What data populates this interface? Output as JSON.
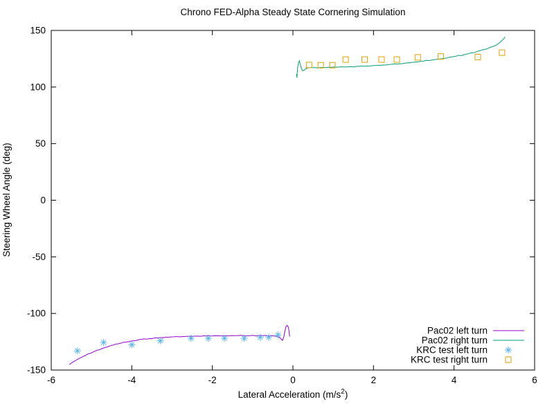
{
  "window": {
    "background": "#ffffff"
  },
  "chart_data": {
    "type": "line",
    "title": "Chrono FED-Alpha Steady State Cornering Simulation",
    "xlabel_main": "Lateral Acceleration (m/s",
    "xlabel_sup": "2",
    "xlabel_close": ")",
    "ylabel": "Steering Wheel Angle (deg)",
    "xlim": [
      -6,
      6
    ],
    "ylim": [
      -150,
      150
    ],
    "xticks": [
      "-6",
      "-4",
      "-2",
      "0",
      "2",
      "4",
      "6"
    ],
    "xtick_values": [
      -6,
      -4,
      -2,
      0,
      2,
      4,
      6
    ],
    "yticks": [
      "-150",
      "-100",
      "-50",
      "0",
      "50",
      "100",
      "150"
    ],
    "ytick_values": [
      -150,
      -100,
      -50,
      0,
      50,
      100,
      150
    ],
    "grid": false,
    "legend_position": "inside-bottom-right",
    "axis_color": "#000000",
    "series": [
      {
        "name": "Pac02 left turn",
        "type": "line",
        "color": "#9400d3",
        "points": [
          [
            -5.55,
            -145.2
          ],
          [
            -5.45,
            -142.7
          ],
          [
            -5.35,
            -140.5
          ],
          [
            -5.25,
            -138.8
          ],
          [
            -5.15,
            -137.1
          ],
          [
            -5.05,
            -135.4
          ],
          [
            -4.95,
            -133.9
          ],
          [
            -4.85,
            -132.4
          ],
          [
            -4.75,
            -131.1
          ],
          [
            -4.65,
            -129.9
          ],
          [
            -4.55,
            -128.8
          ],
          [
            -4.45,
            -127.8
          ],
          [
            -4.35,
            -126.9
          ],
          [
            -4.25,
            -126.1
          ],
          [
            -4.15,
            -125.4
          ],
          [
            -4.05,
            -124.7
          ],
          [
            -3.95,
            -124.1
          ],
          [
            -3.85,
            -123.5
          ],
          [
            -3.75,
            -123.0
          ],
          [
            -3.65,
            -122.6
          ],
          [
            -3.55,
            -122.2
          ],
          [
            -3.45,
            -121.8
          ],
          [
            -3.35,
            -121.5
          ],
          [
            -3.25,
            -121.3
          ],
          [
            -3.15,
            -121.0
          ],
          [
            -3.05,
            -120.8
          ],
          [
            -2.95,
            -120.6
          ],
          [
            -2.85,
            -120.5
          ],
          [
            -2.75,
            -120.3
          ],
          [
            -2.65,
            -120.2
          ],
          [
            -2.55,
            -120.1
          ],
          [
            -2.45,
            -120.0
          ],
          [
            -2.35,
            -120.0
          ],
          [
            -2.25,
            -119.9
          ],
          [
            -2.15,
            -119.8
          ],
          [
            -2.05,
            -119.8
          ],
          [
            -1.95,
            -119.7
          ],
          [
            -1.85,
            -119.7
          ],
          [
            -1.75,
            -119.7
          ],
          [
            -1.65,
            -119.6
          ],
          [
            -1.55,
            -119.6
          ],
          [
            -1.45,
            -119.6
          ],
          [
            -1.35,
            -119.6
          ],
          [
            -1.25,
            -119.6
          ],
          [
            -1.15,
            -119.6
          ],
          [
            -1.05,
            -119.6
          ],
          [
            -0.95,
            -119.6
          ],
          [
            -0.85,
            -119.6
          ],
          [
            -0.75,
            -119.7
          ],
          [
            -0.65,
            -119.7
          ],
          [
            -0.55,
            -119.8
          ],
          [
            -0.47,
            -119.9
          ],
          [
            -0.41,
            -120.2
          ],
          [
            -0.35,
            -120.9
          ],
          [
            -0.3,
            -122.4
          ],
          [
            -0.26,
            -123.8
          ],
          [
            -0.23,
            -121.2
          ],
          [
            -0.2,
            -115.8
          ],
          [
            -0.17,
            -111.4
          ],
          [
            -0.14,
            -110.6
          ],
          [
            -0.12,
            -111.6
          ],
          [
            -0.1,
            -114.6
          ],
          [
            -0.09,
            -118.2
          ],
          [
            -0.08,
            -120.4
          ]
        ]
      },
      {
        "name": "Pac02 right turn",
        "type": "line",
        "color": "#009e73",
        "points": [
          [
            0.09,
            111.5
          ],
          [
            0.1,
            108.2
          ],
          [
            0.11,
            113.5
          ],
          [
            0.12,
            118.2
          ],
          [
            0.14,
            121.6
          ],
          [
            0.16,
            123.2
          ],
          [
            0.18,
            120.2
          ],
          [
            0.21,
            116.6
          ],
          [
            0.24,
            114.3
          ],
          [
            0.28,
            114.9
          ],
          [
            0.33,
            116.4
          ],
          [
            0.39,
            117.0
          ],
          [
            0.46,
            117.2
          ],
          [
            0.55,
            117.1
          ],
          [
            0.65,
            117.2
          ],
          [
            0.75,
            117.3
          ],
          [
            0.85,
            117.3
          ],
          [
            0.95,
            117.4
          ],
          [
            1.05,
            117.5
          ],
          [
            1.15,
            117.6
          ],
          [
            1.25,
            117.7
          ],
          [
            1.35,
            117.8
          ],
          [
            1.45,
            117.9
          ],
          [
            1.55,
            118.0
          ],
          [
            1.65,
            118.2
          ],
          [
            1.75,
            118.4
          ],
          [
            1.85,
            118.6
          ],
          [
            1.95,
            118.8
          ],
          [
            2.05,
            119.0
          ],
          [
            2.15,
            119.3
          ],
          [
            2.25,
            119.5
          ],
          [
            2.35,
            119.8
          ],
          [
            2.45,
            120.1
          ],
          [
            2.55,
            120.4
          ],
          [
            2.65,
            120.7
          ],
          [
            2.75,
            121.0
          ],
          [
            2.85,
            121.4
          ],
          [
            2.95,
            121.8
          ],
          [
            3.05,
            122.2
          ],
          [
            3.15,
            122.6
          ],
          [
            3.25,
            123.0
          ],
          [
            3.35,
            123.4
          ],
          [
            3.45,
            123.9
          ],
          [
            3.55,
            124.4
          ],
          [
            3.65,
            124.9
          ],
          [
            3.75,
            125.4
          ],
          [
            3.85,
            126.0
          ],
          [
            3.95,
            126.6
          ],
          [
            4.05,
            127.2
          ],
          [
            4.15,
            127.9
          ],
          [
            4.25,
            128.6
          ],
          [
            4.35,
            129.4
          ],
          [
            4.45,
            130.2
          ],
          [
            4.55,
            131.1
          ],
          [
            4.65,
            132.1
          ],
          [
            4.75,
            133.1
          ],
          [
            4.85,
            134.3
          ],
          [
            4.95,
            135.6
          ],
          [
            5.05,
            137.1
          ],
          [
            5.12,
            138.9
          ],
          [
            5.18,
            140.8
          ],
          [
            5.23,
            142.5
          ],
          [
            5.27,
            144.3
          ]
        ]
      },
      {
        "name": "KRC test left turn",
        "type": "scatter",
        "marker": "asterisk",
        "color": "#56b4e9",
        "points": [
          [
            -5.35,
            -133.0
          ],
          [
            -4.7,
            -125.6
          ],
          [
            -4.0,
            -127.6
          ],
          [
            -3.29,
            -124.2
          ],
          [
            -2.53,
            -121.9
          ],
          [
            -2.1,
            -121.9
          ],
          [
            -1.7,
            -121.9
          ],
          [
            -1.21,
            -121.9
          ],
          [
            -0.81,
            -121.1
          ],
          [
            -0.6,
            -121.1
          ],
          [
            -0.37,
            -119.0
          ]
        ]
      },
      {
        "name": "KRC test right turn",
        "type": "scatter",
        "marker": "open-square",
        "color": "#e69f00",
        "points": [
          [
            0.4,
            119.5
          ],
          [
            0.69,
            119.3
          ],
          [
            0.98,
            119.3
          ],
          [
            1.31,
            124.3
          ],
          [
            1.78,
            124.3
          ],
          [
            2.2,
            124.3
          ],
          [
            2.58,
            124.3
          ],
          [
            3.1,
            126.2
          ],
          [
            3.67,
            127.0
          ],
          [
            4.59,
            126.5
          ],
          [
            5.19,
            130.4
          ]
        ]
      }
    ]
  }
}
